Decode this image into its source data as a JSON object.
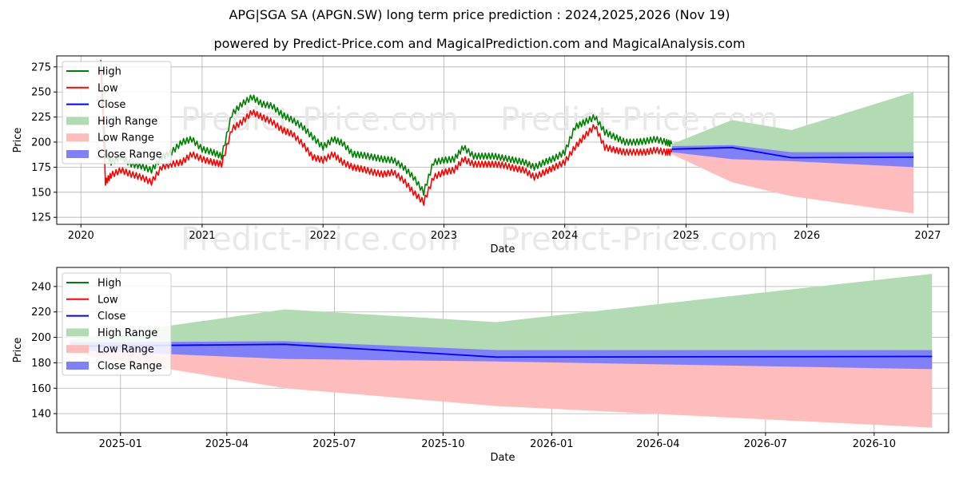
{
  "title": "APG|SGA SA (APGN.SW) long term price prediction : 2024,2025,2026 (Nov 19)",
  "subtitle": "powered by Predict-Price.com and MagicalPrediction.com and MagicalAnalysis.com",
  "watermark": "Predict-Price.com",
  "colors": {
    "high": "#008000",
    "low": "#ff0000",
    "close": "#0000ff",
    "high_range": "#b3dbb3",
    "low_range": "#ffbcbc",
    "close_range": "#8080f8"
  },
  "chart_data": [
    {
      "type": "line",
      "xlabel": "Date",
      "ylabel": "Price",
      "xlim": [
        "2019-10-20",
        "2027-03-05"
      ],
      "ylim": [
        118,
        286
      ],
      "grid": true,
      "legend_position": "top-left",
      "x_ticks": [
        "2020",
        "2021",
        "2022",
        "2023",
        "2024",
        "2025",
        "2026",
        "2027"
      ],
      "y_ticks": [
        125,
        150,
        175,
        200,
        225,
        250,
        275
      ],
      "legend": [
        "High",
        "Low",
        "Close",
        "High Range",
        "Low Range",
        "Close Range"
      ],
      "historical": {
        "dates": [
          "2020-03-01",
          "2020-03-15",
          "2020-04-01",
          "2020-05-01",
          "2020-06-01",
          "2020-07-01",
          "2020-08-01",
          "2020-09-01",
          "2020-10-01",
          "2020-11-01",
          "2020-12-01",
          "2021-01-01",
          "2021-02-01",
          "2021-03-01",
          "2021-04-01",
          "2021-05-01",
          "2021-06-01",
          "2021-07-01",
          "2021-08-01",
          "2021-09-01",
          "2021-10-01",
          "2021-11-01",
          "2021-12-01",
          "2022-01-01",
          "2022-02-01",
          "2022-03-01",
          "2022-04-01",
          "2022-05-01",
          "2022-06-01",
          "2022-07-01",
          "2022-08-01",
          "2022-09-01",
          "2022-10-01",
          "2022-11-01",
          "2022-12-01",
          "2023-01-01",
          "2023-02-01",
          "2023-03-01",
          "2023-04-01",
          "2023-05-01",
          "2023-06-01",
          "2023-07-01",
          "2023-08-01",
          "2023-09-01",
          "2023-10-01",
          "2023-11-01",
          "2023-12-01",
          "2024-01-01",
          "2024-02-01",
          "2024-03-01",
          "2024-04-01",
          "2024-05-01",
          "2024-06-01",
          "2024-07-01",
          "2024-08-01",
          "2024-09-01",
          "2024-10-01",
          "2024-11-01",
          "2024-11-19"
        ],
        "high": [
          285,
          190,
          180,
          185,
          178,
          176,
          172,
          185,
          190,
          200,
          203,
          193,
          190,
          186,
          228,
          238,
          245,
          238,
          236,
          227,
          222,
          215,
          205,
          195,
          203,
          199,
          188,
          187,
          185,
          183,
          182,
          175,
          165,
          150,
          180,
          182,
          183,
          195,
          186,
          186,
          186,
          184,
          182,
          180,
          175,
          180,
          184,
          190,
          215,
          220,
          225,
          210,
          205,
          200,
          200,
          201,
          203,
          200,
          198
        ],
        "low": [
          275,
          160,
          167,
          172,
          168,
          165,
          160,
          175,
          178,
          180,
          188,
          183,
          180,
          178,
          213,
          220,
          230,
          225,
          220,
          212,
          208,
          198,
          185,
          182,
          188,
          180,
          175,
          173,
          170,
          168,
          170,
          162,
          150,
          140,
          165,
          170,
          172,
          183,
          178,
          178,
          178,
          177,
          174,
          172,
          165,
          170,
          175,
          180,
          195,
          206,
          216,
          195,
          192,
          190,
          190,
          190,
          192,
          190,
          190
        ],
        "close": [
          280,
          175,
          173,
          178,
          173,
          170,
          166,
          180,
          184,
          190,
          195,
          188,
          185,
          182,
          220,
          229,
          237,
          231,
          228,
          219,
          215,
          206,
          195,
          188,
          195,
          189,
          181,
          180,
          177,
          175,
          176,
          168,
          158,
          145,
          172,
          176,
          178,
          189,
          182,
          182,
          182,
          180,
          178,
          176,
          170,
          175,
          180,
          185,
          205,
          213,
          220,
          202,
          198,
          195,
          195,
          195,
          197,
          195,
          193
        ]
      },
      "forecast": {
        "dates": [
          "2024-11-19",
          "2025-05-20",
          "2025-11-15",
          "2026-11-19"
        ],
        "close": [
          193,
          194.5,
          184.5,
          185
        ],
        "high_range_upper": [
          198,
          222,
          212,
          250
        ],
        "high_range_lower": [
          193,
          194.5,
          184.5,
          185
        ],
        "low_range_upper": [
          193,
          194.5,
          184.5,
          185
        ],
        "low_range_lower": [
          188,
          160,
          146,
          129
        ],
        "close_range_upper": [
          196,
          197,
          190,
          190
        ],
        "close_range_lower": [
          190,
          183,
          181,
          175
        ]
      }
    },
    {
      "type": "line",
      "xlabel": "Date",
      "ylabel": "Price",
      "xlim": [
        "2024-11-08",
        "2026-12-03"
      ],
      "ylim": [
        125,
        255
      ],
      "grid": true,
      "legend_position": "top-left",
      "x_ticks": [
        "2025-01",
        "2025-04",
        "2025-07",
        "2025-10",
        "2026-01",
        "2026-04",
        "2026-07",
        "2026-10"
      ],
      "y_ticks": [
        140,
        160,
        180,
        200,
        220,
        240
      ],
      "legend": [
        "High",
        "Low",
        "Close",
        "High Range",
        "Low Range",
        "Close Range"
      ],
      "forecast": {
        "dates": [
          "2024-11-19",
          "2025-05-20",
          "2025-11-15",
          "2026-11-19"
        ],
        "close": [
          193,
          194.5,
          184.5,
          185
        ],
        "high_range_upper": [
          198,
          222,
          212,
          250
        ],
        "high_range_lower": [
          193,
          194.5,
          184.5,
          185
        ],
        "low_range_upper": [
          193,
          194.5,
          184.5,
          185
        ],
        "low_range_lower": [
          188,
          160,
          146,
          129
        ],
        "close_range_upper": [
          196,
          197,
          190,
          190
        ],
        "close_range_lower": [
          190,
          183,
          181,
          175
        ]
      }
    }
  ]
}
